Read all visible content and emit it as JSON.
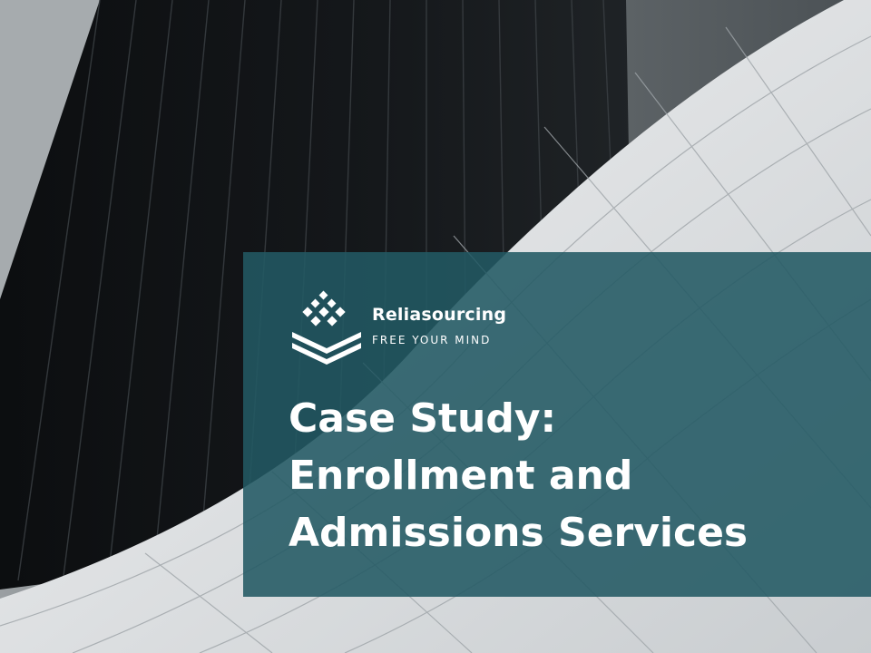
{
  "brand": {
    "name": "Reliasourcing",
    "tagline": "FREE YOUR MIND"
  },
  "title": {
    "line1": "Case Study:",
    "line2": "Enrollment and",
    "line3": "Admissions Services"
  },
  "colors": {
    "panel": "#225963",
    "text": "#ffffff"
  },
  "icons": {
    "logo": "stacked-layers-logo-icon"
  }
}
